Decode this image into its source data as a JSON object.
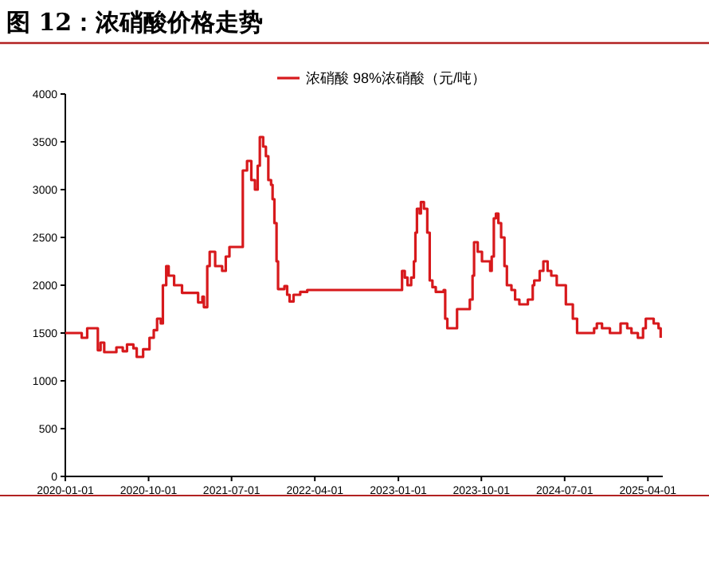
{
  "chart_data": {
    "type": "step",
    "title": "图 12：浓硝酸价格走势",
    "legend": "top",
    "xlim": [
      "2020-01-01",
      "2025-05-20"
    ],
    "ylim": [
      0,
      4000
    ],
    "xticks": [
      "2020-01-01",
      "2020-10-01",
      "2021-07-01",
      "2022-04-01",
      "2023-01-01",
      "2023-10-01",
      "2024-07-01",
      "2025-04-01"
    ],
    "yticks": [
      0,
      500,
      1000,
      1500,
      2000,
      2500,
      3000,
      3500,
      4000
    ],
    "series": [
      {
        "name": "浓硝酸 98%浓硝酸（元/吨）",
        "color": "#d7191c",
        "x": [
          "2020-01-01",
          "2020-02-24",
          "2020-03-13",
          "2020-04-17",
          "2020-04-26",
          "2020-05-08",
          "2020-06-17",
          "2020-07-08",
          "2020-07-22",
          "2020-08-12",
          "2020-08-23",
          "2020-09-13",
          "2020-10-04",
          "2020-10-18",
          "2020-10-29",
          "2020-11-10",
          "2020-11-17",
          "2020-11-28",
          "2020-12-06",
          "2020-12-24",
          "2021-01-19",
          "2021-03-13",
          "2021-03-27",
          "2021-04-01",
          "2021-04-12",
          "2021-04-20",
          "2021-05-08",
          "2021-05-31",
          "2021-06-12",
          "2021-06-24",
          "2021-08-07",
          "2021-08-21",
          "2021-09-04",
          "2021-09-16",
          "2021-09-25",
          "2021-10-02",
          "2021-10-13",
          "2021-10-22",
          "2021-10-30",
          "2021-11-08",
          "2021-11-13",
          "2021-11-19",
          "2021-11-26",
          "2021-12-01",
          "2021-12-22",
          "2021-12-31",
          "2022-01-08",
          "2022-01-21",
          "2022-02-12",
          "2022-03-07",
          "2023-01-13",
          "2023-01-22",
          "2023-01-31",
          "2023-02-12",
          "2023-02-21",
          "2023-02-26",
          "2023-03-03",
          "2023-03-12",
          "2023-03-16",
          "2023-03-26",
          "2023-04-06",
          "2023-04-14",
          "2023-04-23",
          "2023-05-04",
          "2023-05-30",
          "2023-06-04",
          "2023-06-11",
          "2023-07-13",
          "2023-08-24",
          "2023-09-02",
          "2023-09-07",
          "2023-09-19",
          "2023-10-03",
          "2023-10-30",
          "2023-11-04",
          "2023-11-11",
          "2023-11-18",
          "2023-11-26",
          "2023-12-05",
          "2023-12-16",
          "2023-12-24",
          "2024-01-08",
          "2024-01-20",
          "2024-02-03",
          "2024-03-02",
          "2024-03-18",
          "2024-03-23",
          "2024-04-10",
          "2024-04-22",
          "2024-05-06",
          "2024-05-18",
          "2024-06-05",
          "2024-07-05",
          "2024-07-28",
          "2024-08-11",
          "2024-10-06",
          "2024-10-15",
          "2024-11-01",
          "2024-11-27",
          "2025-01-01",
          "2025-01-23",
          "2025-02-06",
          "2025-02-27",
          "2025-03-16",
          "2025-03-25",
          "2025-04-20",
          "2025-05-06",
          "2025-05-13"
        ],
        "values": [
          1500,
          1450,
          1550,
          1320,
          1400,
          1300,
          1350,
          1310,
          1380,
          1340,
          1250,
          1330,
          1450,
          1530,
          1650,
          1600,
          2000,
          2200,
          2100,
          2000,
          1920,
          1820,
          1880,
          1770,
          2200,
          2350,
          2200,
          2150,
          2300,
          2400,
          3200,
          3300,
          3100,
          3000,
          3250,
          3550,
          3450,
          3350,
          3100,
          3050,
          2900,
          2650,
          2250,
          1960,
          1990,
          1900,
          1830,
          1900,
          1930,
          1950,
          2150,
          2080,
          2000,
          2080,
          2250,
          2550,
          2800,
          2750,
          2870,
          2800,
          2550,
          2050,
          1980,
          1930,
          1950,
          1650,
          1550,
          1750,
          1850,
          2100,
          2450,
          2350,
          2250,
          2150,
          2300,
          2700,
          2750,
          2650,
          2500,
          2200,
          2000,
          1950,
          1850,
          1800,
          1850,
          2000,
          2050,
          2150,
          2250,
          2150,
          2100,
          2000,
          1800,
          1650,
          1500,
          1550,
          1600,
          1550,
          1500,
          1600,
          1550,
          1500,
          1450,
          1550,
          1650,
          1600,
          1550,
          1450
        ]
      }
    ]
  }
}
